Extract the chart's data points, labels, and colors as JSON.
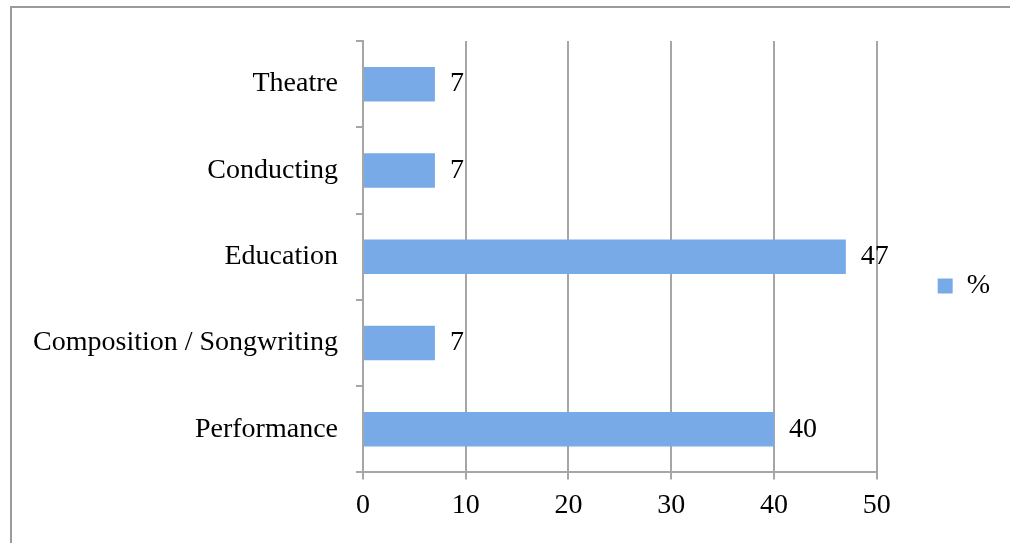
{
  "chart_data": {
    "type": "bar",
    "orientation": "horizontal",
    "categories": [
      "Theatre",
      "Conducting",
      "Education",
      "Composition / Songwriting",
      "Performance"
    ],
    "series": [
      {
        "name": "%",
        "color": "#78aae8",
        "values": [
          7,
          7,
          47,
          7,
          40
        ]
      }
    ],
    "xlim": [
      0,
      50
    ],
    "xticks": [
      0,
      10,
      20,
      30,
      40,
      50
    ],
    "grid": "x",
    "legend": "right",
    "data_labels": true
  }
}
